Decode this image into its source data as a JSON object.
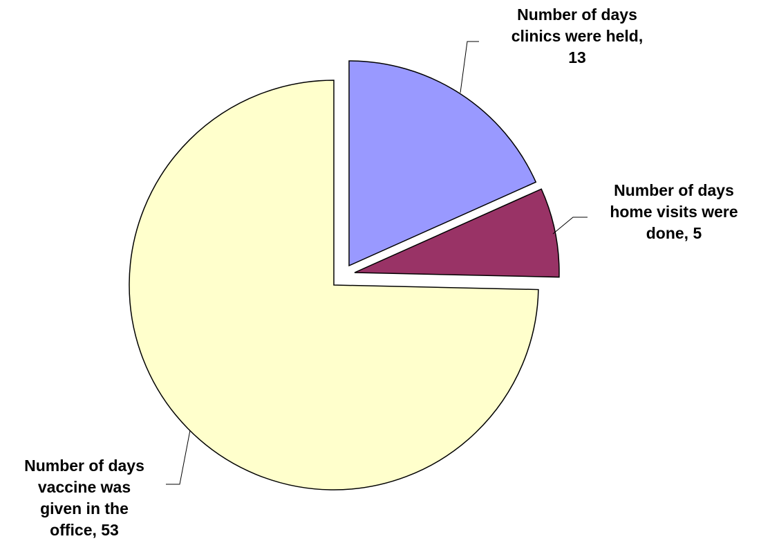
{
  "chart_data": {
    "type": "pie",
    "title": "",
    "slices": [
      {
        "label": "Number of days clinics were held",
        "value": 13,
        "color": "#9999FF",
        "data_label": "Number of days\nclinics were held,\n13"
      },
      {
        "label": "Number of days home visits were done",
        "value": 5,
        "color": "#993366",
        "data_label": "Number of days\nhome visits were\ndone, 5"
      },
      {
        "label": "Number of days vaccine was given in the office",
        "value": 53,
        "color": "#FFFFCC",
        "data_label": "Number of days\nvaccine was\ngiven in the\noffice, 53"
      }
    ],
    "exploded": true,
    "legend": "none"
  }
}
